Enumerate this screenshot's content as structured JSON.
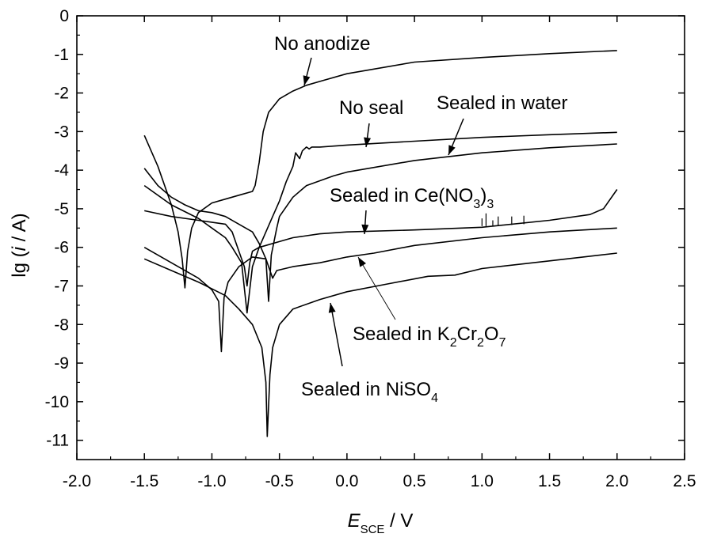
{
  "chart_data": {
    "type": "line",
    "xlabel": {
      "main": "E",
      "sub": "SCE",
      "rest": " / V"
    },
    "ylabel": {
      "pre": "lg (",
      "var": "i",
      "post": " / A)"
    },
    "xlim": [
      -2.0,
      2.5
    ],
    "ylim": [
      -11.5,
      0
    ],
    "xticks": [
      -2.0,
      -1.5,
      -1.0,
      -0.5,
      0.0,
      0.5,
      1.0,
      1.5,
      2.0,
      2.5
    ],
    "xtick_labels": [
      "-2.0",
      "-1.5",
      "-1.0",
      "-0.5",
      "0.0",
      "0.5",
      "1.0",
      "1.5",
      "2.0",
      "2.5"
    ],
    "yticks": [
      0,
      -1,
      -2,
      -3,
      -4,
      -5,
      -6,
      -7,
      -8,
      -9,
      -10,
      -11
    ],
    "ytick_labels": [
      "0",
      "-1",
      "-2",
      "-3",
      "-4",
      "-5",
      "-6",
      "-7",
      "-8",
      "-9",
      "-10",
      "-11"
    ],
    "grid": false,
    "legend": "none",
    "series": [
      {
        "name": "No anodize",
        "points": [
          [
            -1.5,
            -3.1
          ],
          [
            -1.4,
            -3.9
          ],
          [
            -1.3,
            -4.9
          ],
          [
            -1.25,
            -5.6
          ],
          [
            -1.22,
            -6.3
          ],
          [
            -1.2,
            -7.05
          ],
          [
            -1.18,
            -6.1
          ],
          [
            -1.15,
            -5.5
          ],
          [
            -1.1,
            -5.1
          ],
          [
            -1.0,
            -4.85
          ],
          [
            -0.9,
            -4.75
          ],
          [
            -0.8,
            -4.65
          ],
          [
            -0.7,
            -4.55
          ],
          [
            -0.68,
            -4.4
          ],
          [
            -0.65,
            -3.8
          ],
          [
            -0.62,
            -3.0
          ],
          [
            -0.58,
            -2.5
          ],
          [
            -0.5,
            -2.15
          ],
          [
            -0.4,
            -1.95
          ],
          [
            -0.3,
            -1.8
          ],
          [
            -0.2,
            -1.7
          ],
          [
            0.0,
            -1.5
          ],
          [
            0.5,
            -1.2
          ],
          [
            1.0,
            -1.08
          ],
          [
            1.5,
            -0.98
          ],
          [
            2.0,
            -0.9
          ]
        ]
      },
      {
        "name": "No seal",
        "points": [
          [
            -1.5,
            -4.4
          ],
          [
            -1.3,
            -4.9
          ],
          [
            -1.1,
            -5.25
          ],
          [
            -1.0,
            -5.5
          ],
          [
            -0.9,
            -5.75
          ],
          [
            -0.85,
            -6.0
          ],
          [
            -0.78,
            -6.4
          ],
          [
            -0.74,
            -7.7
          ],
          [
            -0.7,
            -6.5
          ],
          [
            -0.65,
            -6.0
          ],
          [
            -0.6,
            -5.6
          ],
          [
            -0.55,
            -5.2
          ],
          [
            -0.5,
            -4.8
          ],
          [
            -0.45,
            -4.3
          ],
          [
            -0.4,
            -3.9
          ],
          [
            -0.38,
            -3.55
          ],
          [
            -0.35,
            -3.7
          ],
          [
            -0.33,
            -3.5
          ],
          [
            -0.3,
            -3.4
          ],
          [
            -0.28,
            -3.45
          ],
          [
            -0.26,
            -3.4
          ],
          [
            -0.2,
            -3.4
          ],
          [
            0.0,
            -3.35
          ],
          [
            0.5,
            -3.25
          ],
          [
            1.0,
            -3.15
          ],
          [
            1.5,
            -3.08
          ],
          [
            2.0,
            -3.02
          ]
        ]
      },
      {
        "name": "Sealed in water",
        "points": [
          [
            -1.5,
            -3.95
          ],
          [
            -1.4,
            -4.4
          ],
          [
            -1.3,
            -4.7
          ],
          [
            -1.2,
            -4.9
          ],
          [
            -1.1,
            -5.05
          ],
          [
            -1.0,
            -5.1
          ],
          [
            -0.9,
            -5.2
          ],
          [
            -0.8,
            -5.4
          ],
          [
            -0.7,
            -5.6
          ],
          [
            -0.65,
            -5.9
          ],
          [
            -0.6,
            -6.3
          ],
          [
            -0.58,
            -7.4
          ],
          [
            -0.56,
            -6.2
          ],
          [
            -0.52,
            -5.5
          ],
          [
            -0.5,
            -5.2
          ],
          [
            -0.4,
            -4.7
          ],
          [
            -0.3,
            -4.4
          ],
          [
            -0.1,
            -4.15
          ],
          [
            0.0,
            -4.05
          ],
          [
            0.5,
            -3.75
          ],
          [
            1.0,
            -3.55
          ],
          [
            1.5,
            -3.42
          ],
          [
            2.0,
            -3.32
          ]
        ]
      },
      {
        "name": "Sealed in Ce(NO3)3",
        "points": [
          [
            -1.5,
            -5.05
          ],
          [
            -1.3,
            -5.2
          ],
          [
            -1.1,
            -5.3
          ],
          [
            -0.9,
            -5.4
          ],
          [
            -0.85,
            -5.6
          ],
          [
            -0.8,
            -6.1
          ],
          [
            -0.76,
            -6.5
          ],
          [
            -0.74,
            -7.0
          ],
          [
            -0.72,
            -6.4
          ],
          [
            -0.7,
            -6.1
          ],
          [
            -0.65,
            -6.0
          ],
          [
            -0.6,
            -5.95
          ],
          [
            -0.5,
            -5.85
          ],
          [
            -0.4,
            -5.75
          ],
          [
            -0.2,
            -5.65
          ],
          [
            0.0,
            -5.6
          ],
          [
            0.5,
            -5.55
          ],
          [
            1.0,
            -5.48
          ],
          [
            1.5,
            -5.3
          ],
          [
            1.8,
            -5.15
          ],
          [
            1.9,
            -5.0
          ],
          [
            2.0,
            -4.5
          ]
        ]
      },
      {
        "name": "Sealed in K2Cr2O7",
        "points": [
          [
            -1.5,
            -6.0
          ],
          [
            -1.3,
            -6.4
          ],
          [
            -1.1,
            -6.8
          ],
          [
            -1.0,
            -7.1
          ],
          [
            -0.95,
            -7.4
          ],
          [
            -0.93,
            -8.7
          ],
          [
            -0.91,
            -7.3
          ],
          [
            -0.88,
            -6.9
          ],
          [
            -0.8,
            -6.5
          ],
          [
            -0.7,
            -6.25
          ],
          [
            -0.6,
            -6.3
          ],
          [
            -0.57,
            -6.6
          ],
          [
            -0.55,
            -6.8
          ],
          [
            -0.52,
            -6.6
          ],
          [
            -0.4,
            -6.5
          ],
          [
            -0.2,
            -6.4
          ],
          [
            0.0,
            -6.25
          ],
          [
            0.2,
            -6.15
          ],
          [
            0.5,
            -5.95
          ],
          [
            1.0,
            -5.75
          ],
          [
            1.5,
            -5.6
          ],
          [
            2.0,
            -5.5
          ]
        ]
      },
      {
        "name": "Sealed in NiSO4",
        "points": [
          [
            -1.5,
            -6.3
          ],
          [
            -1.3,
            -6.6
          ],
          [
            -1.1,
            -6.9
          ],
          [
            -0.9,
            -7.25
          ],
          [
            -0.8,
            -7.6
          ],
          [
            -0.7,
            -8.0
          ],
          [
            -0.63,
            -8.6
          ],
          [
            -0.6,
            -9.5
          ],
          [
            -0.59,
            -10.9
          ],
          [
            -0.57,
            -9.3
          ],
          [
            -0.55,
            -8.6
          ],
          [
            -0.5,
            -8.0
          ],
          [
            -0.4,
            -7.6
          ],
          [
            -0.2,
            -7.35
          ],
          [
            0.0,
            -7.15
          ],
          [
            0.3,
            -6.95
          ],
          [
            0.6,
            -6.75
          ],
          [
            0.8,
            -6.72
          ],
          [
            1.0,
            -6.55
          ],
          [
            1.5,
            -6.35
          ],
          [
            2.0,
            -6.15
          ]
        ]
      }
    ],
    "annotations": [
      {
        "id": "no-anodize",
        "segments": [
          {
            "text": "No anodize"
          }
        ]
      },
      {
        "id": "no-seal",
        "segments": [
          {
            "text": "No seal"
          }
        ]
      },
      {
        "id": "water",
        "segments": [
          {
            "text": "Sealed in water"
          }
        ]
      },
      {
        "id": "ce",
        "segments": [
          {
            "text": "Sealed in Ce(NO"
          },
          {
            "text": "3",
            "sub": true
          },
          {
            "text": ")"
          },
          {
            "text": "3",
            "sub": true
          }
        ]
      },
      {
        "id": "k2cr2o7",
        "segments": [
          {
            "text": "Sealed in K"
          },
          {
            "text": "2",
            "sub": true
          },
          {
            "text": "Cr"
          },
          {
            "text": "2",
            "sub": true
          },
          {
            "text": "O"
          },
          {
            "text": "7",
            "sub": true
          }
        ]
      },
      {
        "id": "niso4",
        "segments": [
          {
            "text": "Sealed in NiSO"
          },
          {
            "text": "4",
            "sub": true
          }
        ]
      }
    ]
  }
}
